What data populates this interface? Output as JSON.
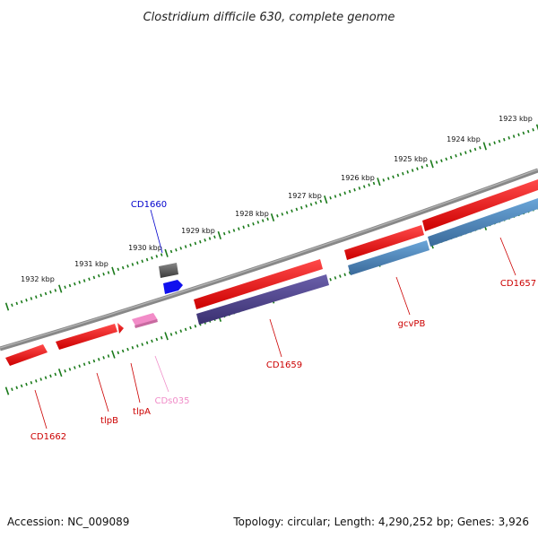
{
  "title": "Clostridium difficile 630, complete genome",
  "footer": {
    "accession": "Accession: NC_009089",
    "topology": "Topology: circular; Length: 4,290,252 bp; Genes: 3,926"
  },
  "colors": {
    "backbone": "#7a7a7a",
    "tick": "#1a7a1a",
    "gene_red": "#ee1111",
    "gene_purple": "#4a3f8a",
    "gene_blue": "#4a85b8",
    "gene_gray": "#555555",
    "gene_bright_blue": "#1010ee",
    "gene_pink": "#f28cc8",
    "label_red": "#cc0000",
    "label_blue": "#0000cc",
    "label_pink": "#f08cc8"
  },
  "tick_labels": [
    "1923 kbp",
    "1924 kbp",
    "1925 kbp",
    "1926 kbp",
    "1927 kbp",
    "1928 kbp",
    "1929 kbp",
    "1930 kbp",
    "1931 kbp",
    "1932 kbp"
  ],
  "gene_labels": {
    "cd1660": "CD1660",
    "cd1657": "CD1657",
    "gcvpb": "gcvPB",
    "cd1659": "CD1659",
    "cds035": "CDs035",
    "tlpa": "tlpA",
    "tlpb": "tlpB",
    "cd1662": "CD1662"
  }
}
